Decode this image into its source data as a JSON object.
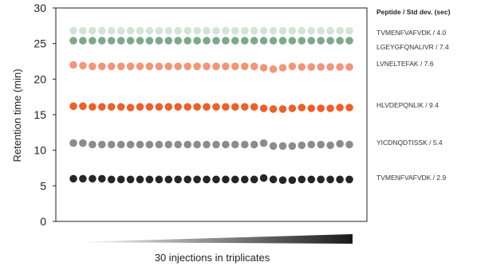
{
  "chart_data": {
    "type": "scatter",
    "ylabel": "Retention time (min)",
    "xlabel": "30 injections in triplicates",
    "ylim": [
      0,
      30
    ],
    "yticks": [
      0,
      5,
      10,
      15,
      20,
      25,
      30
    ],
    "x": [
      1,
      2,
      3,
      4,
      5,
      6,
      7,
      8,
      9,
      10,
      11,
      12,
      13,
      14,
      15,
      16,
      17,
      18,
      19,
      20,
      21,
      22,
      23,
      24,
      25,
      26,
      27,
      28,
      29,
      30
    ],
    "legend": {
      "title": "Peptide / Std dev. (sec)",
      "placement": "right"
    },
    "series": [
      {
        "name": "TVMENFVAFVDK / 4.0",
        "color": "#d2e4d6",
        "values": [
          26.8,
          26.8,
          26.8,
          26.8,
          26.8,
          26.8,
          26.8,
          26.8,
          26.8,
          26.8,
          26.8,
          26.8,
          26.8,
          26.8,
          26.8,
          26.8,
          26.8,
          26.8,
          26.8,
          26.8,
          26.8,
          26.8,
          26.8,
          26.8,
          26.8,
          26.8,
          26.8,
          26.8,
          26.8,
          26.8
        ]
      },
      {
        "name": "LGEYGFQNALIVR / 7.4",
        "color": "#7fa88b",
        "values": [
          25.4,
          25.4,
          25.4,
          25.4,
          25.4,
          25.4,
          25.4,
          25.4,
          25.4,
          25.4,
          25.4,
          25.4,
          25.4,
          25.4,
          25.4,
          25.4,
          25.4,
          25.4,
          25.4,
          25.4,
          25.4,
          25.4,
          25.4,
          25.4,
          25.4,
          25.4,
          25.4,
          25.4,
          25.4,
          25.4
        ]
      },
      {
        "name": "LVNELTEFAK / 7.6",
        "color": "#f0967a",
        "values": [
          22.0,
          21.9,
          21.8,
          21.8,
          21.8,
          21.8,
          21.8,
          21.8,
          21.8,
          21.8,
          21.8,
          21.8,
          21.8,
          21.8,
          21.8,
          21.8,
          21.8,
          21.8,
          21.8,
          21.8,
          21.6,
          21.4,
          21.6,
          21.8,
          21.7,
          21.7,
          21.7,
          21.7,
          21.7,
          21.7
        ]
      },
      {
        "name": "HLVDEPQNLIK / 9.4",
        "color": "#e8622e",
        "values": [
          16.2,
          16.2,
          16.1,
          16.1,
          16.1,
          16.1,
          16.0,
          16.1,
          16.1,
          16.1,
          16.1,
          16.1,
          16.1,
          16.1,
          16.1,
          16.1,
          16.1,
          16.1,
          16.1,
          16.1,
          15.9,
          15.8,
          15.8,
          15.9,
          16.0,
          15.9,
          15.9,
          15.9,
          16.0,
          16.0
        ]
      },
      {
        "name": "YICDNQDTISSK / 5.4",
        "color": "#8c8c8c",
        "values": [
          11.0,
          11.0,
          10.8,
          10.8,
          10.8,
          10.8,
          10.8,
          10.8,
          10.8,
          10.8,
          10.8,
          10.8,
          10.8,
          10.8,
          10.8,
          10.8,
          10.8,
          10.8,
          10.8,
          10.8,
          11.0,
          10.6,
          10.6,
          10.6,
          10.7,
          10.8,
          10.8,
          10.7,
          10.9,
          10.8
        ]
      },
      {
        "name": "TVMENFVAFVDK / 2.9",
        "color": "#262626",
        "values": [
          6.0,
          6.0,
          6.0,
          6.0,
          5.9,
          5.9,
          5.9,
          5.9,
          5.9,
          5.9,
          5.9,
          5.9,
          5.9,
          5.9,
          5.9,
          5.9,
          5.9,
          5.9,
          5.9,
          5.9,
          6.1,
          5.9,
          5.8,
          5.8,
          5.9,
          5.9,
          5.9,
          5.9,
          5.9,
          5.9
        ]
      }
    ]
  }
}
